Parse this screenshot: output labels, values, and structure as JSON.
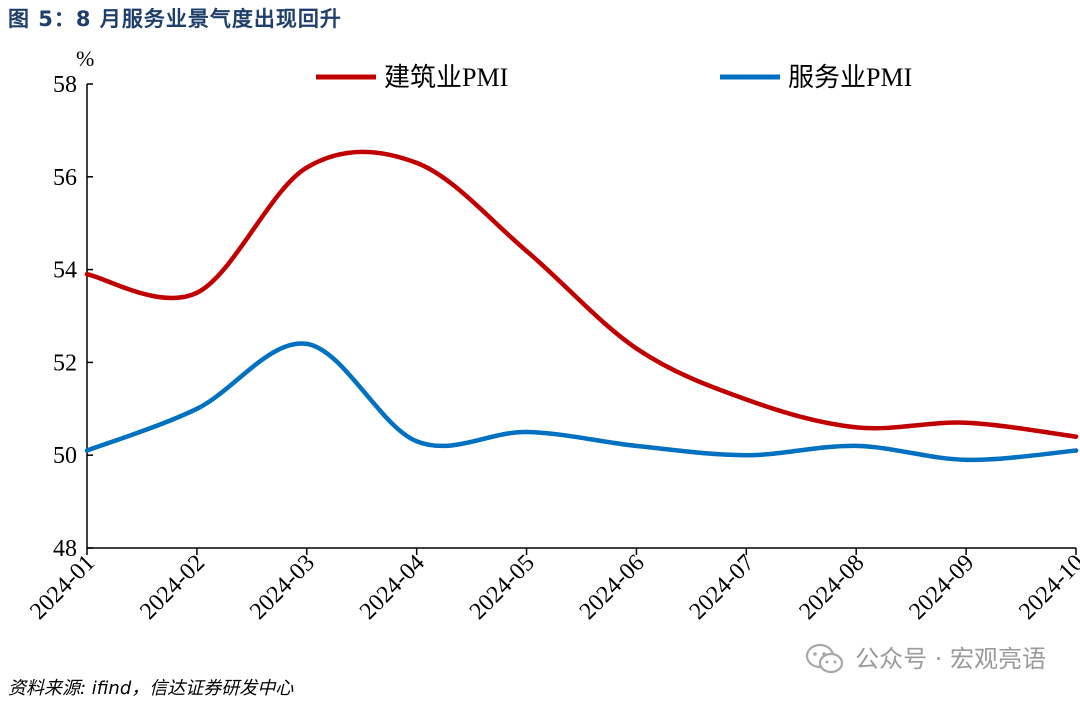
{
  "figure": {
    "title": "图 5：8 月服务业景气度出现回升",
    "source": "资料来源: ifind，信达证券研发中心",
    "watermark": "公众号 · 宏观亮语",
    "watermark_icon": "wechat-icon"
  },
  "chart_data": {
    "type": "line",
    "title": "",
    "xlabel": "",
    "ylabel": "%",
    "ylim": [
      48,
      58
    ],
    "yticks": [
      48,
      50,
      52,
      54,
      56,
      58
    ],
    "grid": false,
    "legend_position": "top",
    "categories": [
      "2024-01",
      "2024-02",
      "2024-03",
      "2024-04",
      "2024-05",
      "2024-06",
      "2024-07",
      "2024-08",
      "2024-09",
      "2024-10"
    ],
    "series": [
      {
        "name": "建筑业PMI",
        "color": "#c00000",
        "values": [
          53.9,
          53.5,
          56.2,
          56.3,
          54.4,
          52.3,
          51.2,
          50.6,
          50.7,
          50.4
        ]
      },
      {
        "name": "服务业PMI",
        "color": "#0070c0",
        "values": [
          50.1,
          51.0,
          52.4,
          50.3,
          50.5,
          50.2,
          50.0,
          50.2,
          49.9,
          50.1
        ]
      }
    ]
  }
}
